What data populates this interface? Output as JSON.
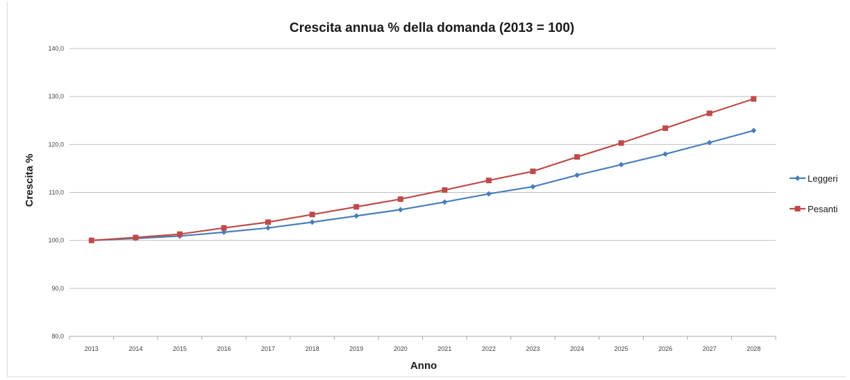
{
  "chart_data": {
    "type": "line",
    "title": "Crescita annua % della domanda (2013 = 100)",
    "xlabel": "Anno",
    "ylabel": "Crescita %",
    "categories": [
      "2013",
      "2014",
      "2015",
      "2016",
      "2017",
      "2018",
      "2019",
      "2020",
      "2021",
      "2022",
      "2023",
      "2024",
      "2025",
      "2026",
      "2027",
      "2028"
    ],
    "ylim": [
      80,
      140
    ],
    "yticks": [
      "80,0",
      "90,0",
      "100,0",
      "110,0",
      "120,0",
      "130,0",
      "140,0"
    ],
    "ytick_values": [
      80,
      90,
      100,
      110,
      120,
      130,
      140
    ],
    "grid": true,
    "legend_position": "right",
    "series": [
      {
        "name": "Leggeri",
        "color": "#4a7ebb",
        "marker": "diamond",
        "values": [
          100.0,
          100.4,
          100.9,
          101.7,
          102.6,
          103.8,
          105.1,
          106.4,
          108.0,
          109.7,
          111.2,
          113.6,
          115.8,
          118.0,
          120.4,
          122.9
        ]
      },
      {
        "name": "Pesanti",
        "color": "#be4b48",
        "marker": "square",
        "values": [
          100.0,
          100.6,
          101.3,
          102.6,
          103.8,
          105.4,
          107.0,
          108.6,
          110.5,
          112.5,
          114.4,
          117.4,
          120.3,
          123.4,
          126.5,
          129.5
        ]
      }
    ]
  }
}
